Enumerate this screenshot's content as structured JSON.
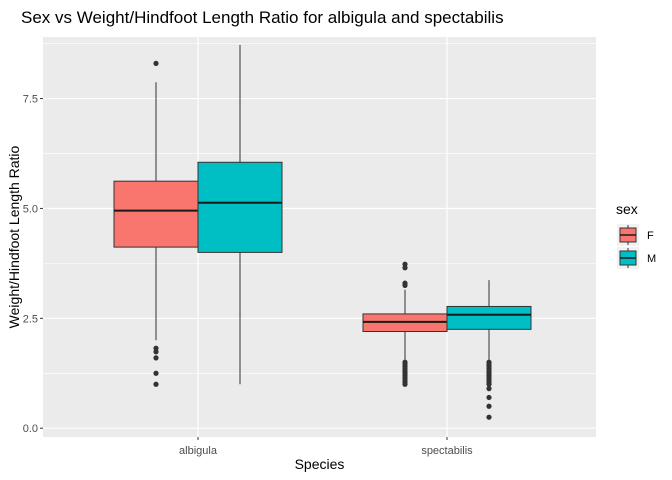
{
  "chart_data": {
    "type": "boxplot",
    "title": "Sex vs Weight/Hindfoot Length Ratio for albigula and spectabilis",
    "xlabel": "Species",
    "ylabel": "Weight/Hindfoot Length Ratio",
    "categories": [
      "albigula",
      "spectabilis"
    ],
    "ylim": [
      -0.2,
      8.9
    ],
    "yticks": [
      0.0,
      2.5,
      5.0,
      7.5
    ],
    "ytick_labels": [
      "0.0",
      "2.5",
      "5.0",
      "7.5"
    ],
    "legend": {
      "title": "sex",
      "position": "right",
      "entries": [
        {
          "label": "F",
          "color": "#F8766D"
        },
        {
          "label": "M",
          "color": "#00BFC4"
        }
      ]
    },
    "series": [
      {
        "name": "F",
        "color": "#F8766D",
        "boxes": [
          {
            "category": "albigula",
            "whisker_low": 2.0,
            "q1": 4.12,
            "median": 4.95,
            "q3": 5.62,
            "whisker_high": 7.87,
            "outliers": [
              8.3,
              1.82,
              1.74,
              1.6,
              1.25,
              1.0
            ]
          },
          {
            "category": "spectabilis",
            "whisker_low": 1.55,
            "q1": 2.2,
            "median": 2.42,
            "q3": 2.6,
            "whisker_high": 3.15,
            "outliers": [
              3.73,
              3.65,
              3.3,
              3.25,
              1.5,
              1.45,
              1.4,
              1.35,
              1.3,
              1.25,
              1.2,
              1.15,
              1.1,
              1.05,
              1.0
            ]
          }
        ]
      },
      {
        "name": "M",
        "color": "#00BFC4",
        "boxes": [
          {
            "category": "albigula",
            "whisker_low": 1.0,
            "q1": 4.0,
            "median": 5.13,
            "q3": 6.05,
            "whisker_high": 8.72,
            "outliers": []
          },
          {
            "category": "spectabilis",
            "whisker_low": 1.55,
            "q1": 2.25,
            "median": 2.58,
            "q3": 2.77,
            "whisker_high": 3.37,
            "outliers": [
              1.5,
              1.45,
              1.4,
              1.35,
              1.3,
              1.25,
              1.2,
              1.15,
              1.1,
              1.05,
              1.0,
              0.9,
              0.7,
              0.5,
              0.25
            ]
          }
        ]
      }
    ]
  }
}
